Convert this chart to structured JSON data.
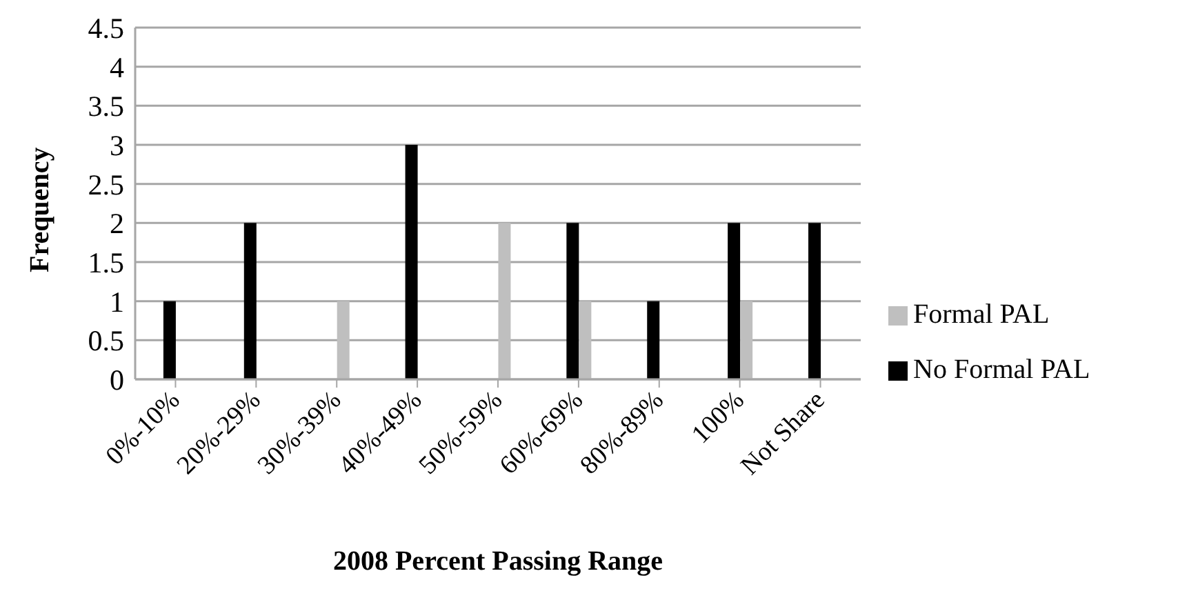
{
  "chart_data": {
    "type": "bar",
    "xlabel": "2008 Percent Passing Range",
    "ylabel": "Frequency",
    "categories": [
      "0%-10%",
      "20%-29%",
      "30%-39%",
      "40%-49%",
      "50%-59%",
      "60%-69%",
      "80%-89%",
      "100%",
      "Not Share"
    ],
    "series": [
      {
        "name": "No Formal PAL",
        "color": "#000000",
        "values": [
          1,
          2,
          0,
          3,
          0,
          2,
          1,
          2,
          2
        ]
      },
      {
        "name": "Formal PAL",
        "color": "#bfbfbf",
        "values": [
          0,
          0,
          1,
          0,
          2,
          1,
          0,
          1,
          0
        ]
      }
    ],
    "ylim": [
      0,
      4.5
    ],
    "yticks": [
      0,
      0.5,
      1,
      1.5,
      2,
      2.5,
      3,
      3.5,
      4,
      4.5
    ],
    "grid": "y",
    "legend": "right"
  }
}
